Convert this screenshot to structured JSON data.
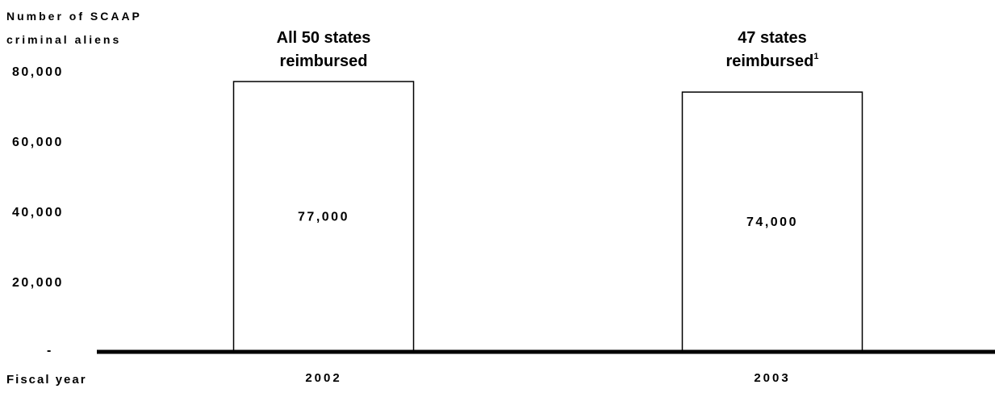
{
  "chart_data": {
    "type": "bar",
    "ylabel_lines": [
      "Number of SCAAP",
      "criminal aliens"
    ],
    "xlabel": "Fiscal year",
    "categories": [
      "2002",
      "2003"
    ],
    "values": [
      77000,
      74000
    ],
    "data_labels": [
      "77,000",
      "74,000"
    ],
    "annotations": [
      {
        "lines": [
          "All 50 states",
          "reimbursed"
        ],
        "superscript": ""
      },
      {
        "lines": [
          "47 states",
          "reimbursed"
        ],
        "superscript": "1"
      }
    ],
    "yticks": [
      {
        "value": 0,
        "label": "-"
      },
      {
        "value": 20000,
        "label": "20,000"
      },
      {
        "value": 40000,
        "label": "40,000"
      },
      {
        "value": 60000,
        "label": "60,000"
      },
      {
        "value": 80000,
        "label": "80,000"
      }
    ],
    "ylim": [
      0,
      80000
    ],
    "grid": false,
    "colors": {
      "bar_fill": "#ffffff",
      "bar_stroke": "#000000",
      "axis": "#000000"
    }
  }
}
